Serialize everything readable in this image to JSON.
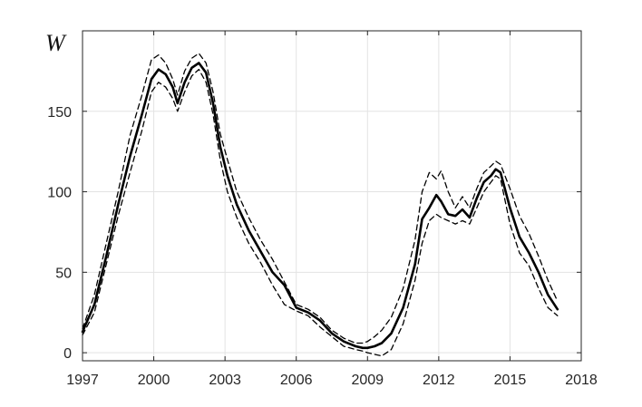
{
  "chart_data": {
    "type": "line",
    "title": "",
    "xlabel": "",
    "ylabel": "W",
    "xlim": [
      1997,
      2018
    ],
    "ylim": [
      -5,
      200
    ],
    "xticks": [
      1997,
      2000,
      2003,
      2006,
      2009,
      2012,
      2015,
      2018
    ],
    "yticks": [
      0,
      50,
      100,
      150
    ],
    "grid": true,
    "legend": "none",
    "series": [
      {
        "style": "solid",
        "color": "#000000",
        "x": [
          1997.0,
          1997.5,
          1998.0,
          1998.5,
          1999.0,
          1999.5,
          1999.9,
          2000.2,
          2000.5,
          2000.8,
          2001.0,
          2001.3,
          2001.6,
          2001.9,
          2002.2,
          2002.5,
          2002.8,
          2003.1,
          2003.5,
          2004.0,
          2004.5,
          2005.0,
          2005.5,
          2006.0,
          2006.5,
          2007.0,
          2007.5,
          2008.0,
          2008.5,
          2008.8,
          2009.0,
          2009.3,
          2009.6,
          2010.0,
          2010.5,
          2011.0,
          2011.3,
          2011.6,
          2011.9,
          2012.1,
          2012.4,
          2012.7,
          2013.0,
          2013.3,
          2013.6,
          2013.9,
          2014.2,
          2014.4,
          2014.6,
          2015.0,
          2015.4,
          2015.8,
          2016.2,
          2016.6,
          2017.0
        ],
        "values": [
          13,
          30,
          60,
          92,
          122,
          148,
          170,
          176,
          173,
          165,
          155,
          168,
          177,
          180,
          174,
          155,
          128,
          110,
          92,
          76,
          63,
          50,
          42,
          28,
          25,
          20,
          12,
          7,
          4,
          3,
          3,
          4,
          6,
          12,
          28,
          55,
          83,
          90,
          98,
          94,
          86,
          85,
          89,
          84,
          96,
          106,
          110,
          114,
          112,
          90,
          72,
          62,
          50,
          36,
          27
        ]
      },
      {
        "style": "dashed",
        "color": "#000000",
        "x": [
          1997.0,
          1997.5,
          1998.0,
          1998.5,
          1999.0,
          1999.5,
          1999.9,
          2000.2,
          2000.5,
          2000.8,
          2001.0,
          2001.3,
          2001.6,
          2001.9,
          2002.2,
          2002.5,
          2002.8,
          2003.1,
          2003.5,
          2004.0,
          2004.5,
          2005.0,
          2005.5,
          2006.0,
          2006.5,
          2007.0,
          2007.5,
          2008.0,
          2008.5,
          2008.8,
          2009.0,
          2009.3,
          2009.6,
          2010.0,
          2010.5,
          2011.0,
          2011.3,
          2011.6,
          2011.9,
          2012.1,
          2012.4,
          2012.7,
          2013.0,
          2013.3,
          2013.6,
          2013.9,
          2014.2,
          2014.4,
          2014.6,
          2015.0,
          2015.4,
          2015.8,
          2016.2,
          2016.6,
          2017.0
        ],
        "values": [
          15,
          36,
          68,
          100,
          135,
          160,
          182,
          185,
          180,
          170,
          160,
          175,
          183,
          186,
          180,
          162,
          136,
          120,
          100,
          84,
          70,
          58,
          44,
          30,
          27,
          22,
          14,
          9,
          6,
          6,
          7,
          10,
          14,
          22,
          40,
          70,
          100,
          112,
          108,
          113,
          100,
          90,
          97,
          90,
          102,
          112,
          116,
          119,
          117,
          102,
          85,
          74,
          60,
          45,
          32
        ]
      },
      {
        "style": "dashed",
        "color": "#000000",
        "x": [
          1997.0,
          1997.5,
          1998.0,
          1998.5,
          1999.0,
          1999.5,
          1999.9,
          2000.2,
          2000.5,
          2000.8,
          2001.0,
          2001.3,
          2001.6,
          2001.9,
          2002.2,
          2002.5,
          2002.8,
          2003.1,
          2003.5,
          2004.0,
          2004.5,
          2005.0,
          2005.5,
          2006.0,
          2006.5,
          2007.0,
          2007.5,
          2008.0,
          2008.5,
          2008.8,
          2009.0,
          2009.3,
          2009.6,
          2010.0,
          2010.5,
          2011.0,
          2011.3,
          2011.6,
          2011.9,
          2012.1,
          2012.4,
          2012.7,
          2013.0,
          2013.3,
          2013.6,
          2013.9,
          2014.2,
          2014.4,
          2014.6,
          2015.0,
          2015.4,
          2015.8,
          2016.2,
          2016.6,
          2017.0
        ],
        "values": [
          11,
          25,
          55,
          85,
          112,
          138,
          162,
          168,
          165,
          158,
          150,
          162,
          172,
          176,
          168,
          148,
          120,
          100,
          84,
          68,
          56,
          42,
          30,
          26,
          23,
          16,
          10,
          4,
          2,
          1,
          0,
          -1,
          -2,
          2,
          18,
          45,
          68,
          82,
          86,
          84,
          82,
          80,
          82,
          80,
          90,
          100,
          106,
          110,
          108,
          80,
          62,
          54,
          40,
          28,
          23
        ]
      }
    ]
  }
}
